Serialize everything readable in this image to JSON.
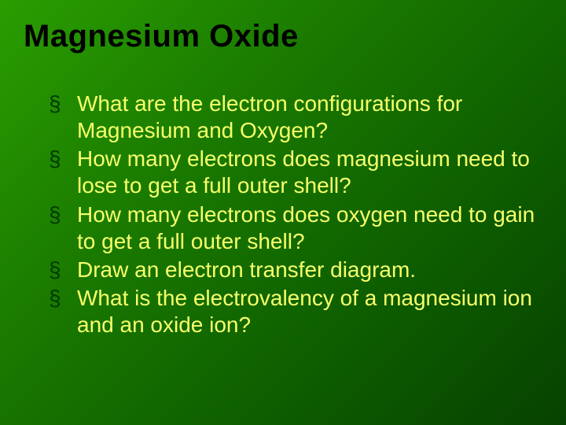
{
  "slide": {
    "title": "Magnesium Oxide",
    "title_color": "#000000",
    "title_fontsize": 40,
    "title_font": "Arial Black",
    "body_color": "#f7ff6b",
    "body_fontsize": 28,
    "bullet_glyph": "§",
    "bullet_color": "#003a00",
    "background_gradient": [
      "#2a9d00",
      "#1a7a00",
      "#0d5c00",
      "#064200"
    ],
    "bullets": [
      "What are the electron configurations for Magnesium and Oxygen?",
      "How many electrons does magnesium need to lose to get a full outer shell?",
      "How many electrons does oxygen need to gain to get a full outer shell?",
      "Draw an electron transfer diagram.",
      "What is the electrovalency of a magnesium ion and an oxide ion?"
    ]
  }
}
